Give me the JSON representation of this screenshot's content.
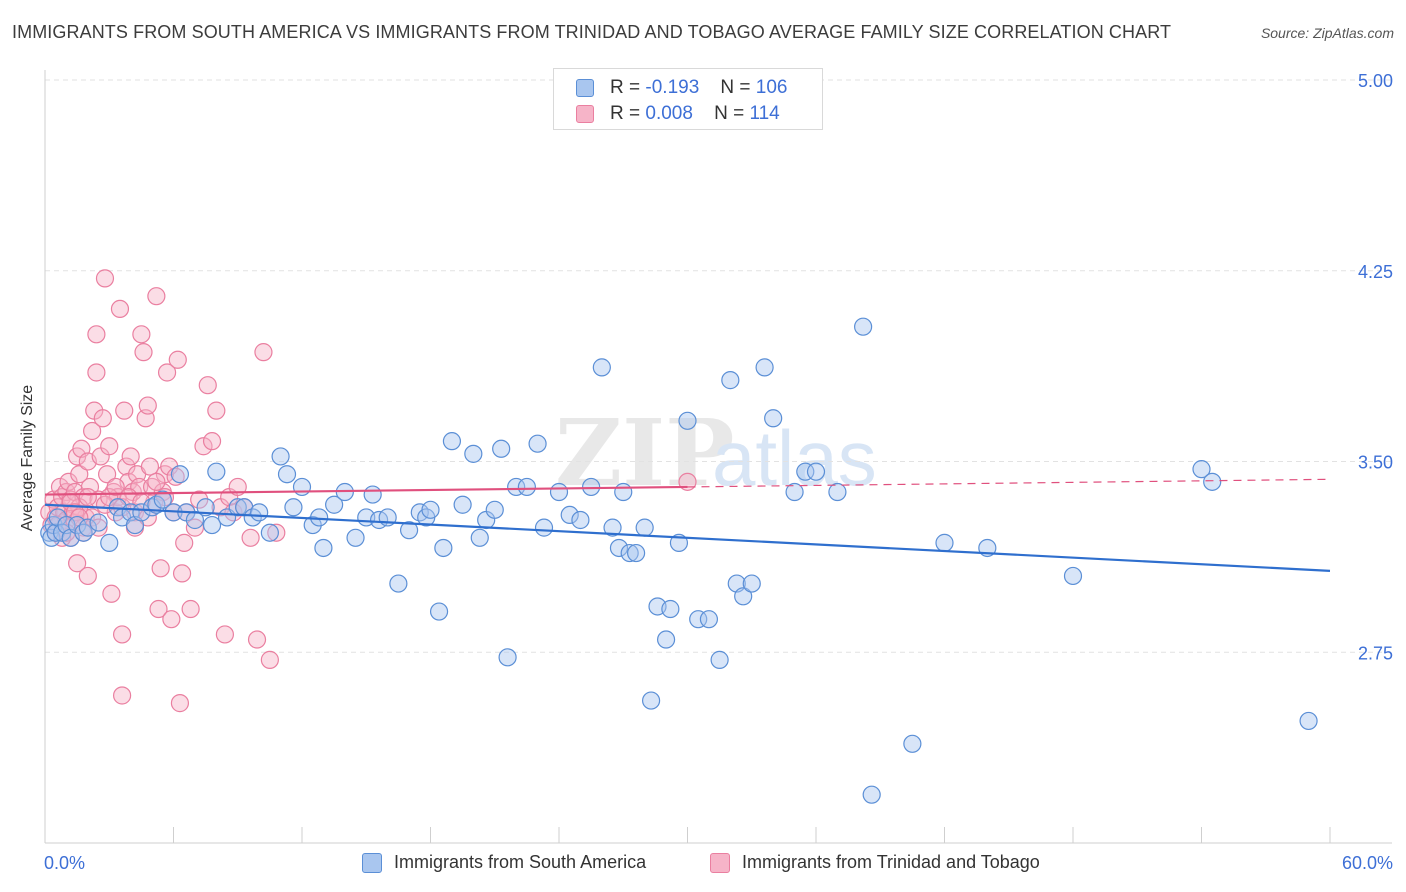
{
  "title": "IMMIGRANTS FROM SOUTH AMERICA VS IMMIGRANTS FROM TRINIDAD AND TOBAGO AVERAGE FAMILY SIZE CORRELATION CHART",
  "source": "Source: ZipAtlas.com",
  "watermark": {
    "zip": "ZIP",
    "atlas": "atlas"
  },
  "stats": {
    "blue": {
      "r_label": "R =",
      "r_value": "-0.193",
      "n_label": "N =",
      "n_value": "106"
    },
    "pink": {
      "r_label": "R =",
      "r_value": "0.008",
      "n_label": "N =",
      "n_value": "114"
    }
  },
  "legend": {
    "blue": "Immigrants from South America",
    "pink": "Immigrants from Trinidad and Tobago"
  },
  "colors": {
    "blue_fill": "#a9c6ef",
    "blue_stroke": "#5b8fd6",
    "blue_line": "#2f6fce",
    "pink_fill": "#f6b4c8",
    "pink_stroke": "#ea7fa0",
    "pink_line": "#e0507e",
    "tick_label": "#3d6fd6",
    "grid": "#e2e2e2"
  },
  "chart_data": {
    "type": "scatter",
    "title": "IMMIGRANTS FROM SOUTH AMERICA VS IMMIGRANTS FROM TRINIDAD AND TOBAGO AVERAGE FAMILY SIZE CORRELATION CHART",
    "xlabel": "",
    "ylabel": "Average Family Size",
    "xlim": [
      0,
      60
    ],
    "ylim": [
      2.0,
      5.0
    ],
    "x_tick_labels": [
      "0.0%",
      "60.0%"
    ],
    "y_ticks": [
      2.75,
      3.5,
      4.25,
      5.0
    ],
    "y_tick_labels": [
      "2.75",
      "3.50",
      "4.25",
      "5.00"
    ],
    "grid": true,
    "series": [
      {
        "name": "Immigrants from South America",
        "r": -0.193,
        "n": 106,
        "trend": {
          "x": [
            0,
            60
          ],
          "y": [
            3.33,
            3.07
          ]
        },
        "points": [
          [
            0.2,
            3.22
          ],
          [
            0.3,
            3.2
          ],
          [
            0.4,
            3.25
          ],
          [
            0.5,
            3.22
          ],
          [
            0.6,
            3.28
          ],
          [
            0.8,
            3.22
          ],
          [
            1.0,
            3.25
          ],
          [
            1.2,
            3.2
          ],
          [
            1.5,
            3.25
          ],
          [
            1.8,
            3.22
          ],
          [
            2.0,
            3.24
          ],
          [
            2.5,
            3.26
          ],
          [
            3.0,
            3.18
          ],
          [
            3.4,
            3.32
          ],
          [
            3.6,
            3.28
          ],
          [
            4.0,
            3.3
          ],
          [
            4.2,
            3.25
          ],
          [
            4.5,
            3.3
          ],
          [
            5.0,
            3.32
          ],
          [
            5.2,
            3.33
          ],
          [
            5.5,
            3.35
          ],
          [
            6.0,
            3.3
          ],
          [
            6.3,
            3.45
          ],
          [
            6.6,
            3.3
          ],
          [
            7.0,
            3.27
          ],
          [
            7.5,
            3.32
          ],
          [
            7.8,
            3.25
          ],
          [
            8.0,
            3.46
          ],
          [
            8.5,
            3.28
          ],
          [
            9.0,
            3.32
          ],
          [
            9.3,
            3.32
          ],
          [
            9.7,
            3.28
          ],
          [
            10.0,
            3.3
          ],
          [
            10.5,
            3.22
          ],
          [
            11.0,
            3.52
          ],
          [
            11.3,
            3.45
          ],
          [
            11.6,
            3.32
          ],
          [
            12.0,
            3.4
          ],
          [
            12.5,
            3.25
          ],
          [
            12.8,
            3.28
          ],
          [
            13.0,
            3.16
          ],
          [
            13.5,
            3.33
          ],
          [
            14.0,
            3.38
          ],
          [
            14.5,
            3.2
          ],
          [
            15.0,
            3.28
          ],
          [
            15.3,
            3.37
          ],
          [
            15.6,
            3.27
          ],
          [
            16.0,
            3.28
          ],
          [
            16.5,
            3.02
          ],
          [
            17.0,
            3.23
          ],
          [
            17.5,
            3.3
          ],
          [
            17.8,
            3.28
          ],
          [
            18.0,
            3.31
          ],
          [
            18.4,
            2.91
          ],
          [
            18.6,
            3.16
          ],
          [
            19.0,
            3.58
          ],
          [
            19.5,
            3.33
          ],
          [
            20.0,
            3.53
          ],
          [
            20.3,
            3.2
          ],
          [
            20.6,
            3.27
          ],
          [
            21.0,
            3.31
          ],
          [
            21.3,
            3.55
          ],
          [
            21.6,
            2.73
          ],
          [
            22.0,
            3.4
          ],
          [
            22.5,
            3.4
          ],
          [
            23.0,
            3.57
          ],
          [
            23.3,
            3.24
          ],
          [
            24.0,
            3.38
          ],
          [
            24.5,
            3.29
          ],
          [
            25.0,
            3.27
          ],
          [
            25.5,
            3.4
          ],
          [
            26.0,
            3.87
          ],
          [
            26.5,
            3.24
          ],
          [
            26.8,
            3.16
          ],
          [
            27.0,
            3.38
          ],
          [
            27.3,
            3.14
          ],
          [
            27.6,
            3.14
          ],
          [
            28.0,
            3.24
          ],
          [
            28.3,
            2.56
          ],
          [
            28.6,
            2.93
          ],
          [
            29.0,
            2.8
          ],
          [
            29.2,
            2.92
          ],
          [
            29.6,
            3.18
          ],
          [
            30.0,
            3.66
          ],
          [
            30.5,
            2.88
          ],
          [
            31.0,
            2.88
          ],
          [
            31.5,
            2.72
          ],
          [
            32.0,
            3.82
          ],
          [
            32.3,
            3.02
          ],
          [
            32.6,
            2.97
          ],
          [
            33.0,
            3.02
          ],
          [
            33.6,
            3.87
          ],
          [
            34.0,
            3.67
          ],
          [
            35.0,
            3.38
          ],
          [
            35.5,
            3.46
          ],
          [
            36.0,
            3.46
          ],
          [
            37.0,
            3.38
          ],
          [
            38.2,
            4.03
          ],
          [
            38.6,
            2.19
          ],
          [
            40.5,
            2.39
          ],
          [
            42.0,
            3.18
          ],
          [
            44.0,
            3.16
          ],
          [
            48.0,
            3.05
          ],
          [
            54.0,
            3.47
          ],
          [
            54.5,
            3.42
          ],
          [
            59.0,
            2.48
          ]
        ]
      },
      {
        "name": "Immigrants from Trinidad and Tobago",
        "r": 0.008,
        "n": 114,
        "trend": {
          "x": [
            0,
            30
          ],
          "y": [
            3.37,
            3.4
          ]
        },
        "trend_dashed": {
          "x": [
            30,
            60
          ],
          "y": [
            3.4,
            3.43
          ]
        },
        "points": [
          [
            0.2,
            3.3
          ],
          [
            0.3,
            3.25
          ],
          [
            0.4,
            3.35
          ],
          [
            0.5,
            3.28
          ],
          [
            0.5,
            3.22
          ],
          [
            0.6,
            3.32
          ],
          [
            0.7,
            3.4
          ],
          [
            0.8,
            3.36
          ],
          [
            0.9,
            3.3
          ],
          [
            1.0,
            3.38
          ],
          [
            1.0,
            3.27
          ],
          [
            1.1,
            3.42
          ],
          [
            1.2,
            3.35
          ],
          [
            1.3,
            3.3
          ],
          [
            1.4,
            3.38
          ],
          [
            1.5,
            3.52
          ],
          [
            1.5,
            3.1
          ],
          [
            1.6,
            3.45
          ],
          [
            1.7,
            3.55
          ],
          [
            1.8,
            3.36
          ],
          [
            1.9,
            3.28
          ],
          [
            2.0,
            3.5
          ],
          [
            2.0,
            3.05
          ],
          [
            2.1,
            3.4
          ],
          [
            2.2,
            3.62
          ],
          [
            2.3,
            3.7
          ],
          [
            2.4,
            3.85
          ],
          [
            2.4,
            4.0
          ],
          [
            2.5,
            3.35
          ],
          [
            2.6,
            3.52
          ],
          [
            2.7,
            3.67
          ],
          [
            2.8,
            4.22
          ],
          [
            2.9,
            3.45
          ],
          [
            3.0,
            3.56
          ],
          [
            3.1,
            2.98
          ],
          [
            3.2,
            3.38
          ],
          [
            3.3,
            3.3
          ],
          [
            3.4,
            3.36
          ],
          [
            3.5,
            4.1
          ],
          [
            3.6,
            2.82
          ],
          [
            3.6,
            2.58
          ],
          [
            3.7,
            3.7
          ],
          [
            3.8,
            3.48
          ],
          [
            3.9,
            3.42
          ],
          [
            4.0,
            3.52
          ],
          [
            4.1,
            3.38
          ],
          [
            4.2,
            3.3
          ],
          [
            4.3,
            3.45
          ],
          [
            4.4,
            3.4
          ],
          [
            4.5,
            4.0
          ],
          [
            4.6,
            3.93
          ],
          [
            4.7,
            3.67
          ],
          [
            4.8,
            3.72
          ],
          [
            4.9,
            3.48
          ],
          [
            5.0,
            3.4
          ],
          [
            5.1,
            3.34
          ],
          [
            5.2,
            4.15
          ],
          [
            5.3,
            2.92
          ],
          [
            5.4,
            3.08
          ],
          [
            5.5,
            3.38
          ],
          [
            5.6,
            3.45
          ],
          [
            5.7,
            3.85
          ],
          [
            5.8,
            3.48
          ],
          [
            5.9,
            2.88
          ],
          [
            6.0,
            3.3
          ],
          [
            6.1,
            3.44
          ],
          [
            6.2,
            3.9
          ],
          [
            6.3,
            2.55
          ],
          [
            6.4,
            3.06
          ],
          [
            6.5,
            3.18
          ],
          [
            6.6,
            3.3
          ],
          [
            6.8,
            2.92
          ],
          [
            7.0,
            3.24
          ],
          [
            7.2,
            3.35
          ],
          [
            7.4,
            3.56
          ],
          [
            7.6,
            3.8
          ],
          [
            7.8,
            3.58
          ],
          [
            8.0,
            3.7
          ],
          [
            8.2,
            3.32
          ],
          [
            8.4,
            2.82
          ],
          [
            8.6,
            3.36
          ],
          [
            8.8,
            3.3
          ],
          [
            9.0,
            3.4
          ],
          [
            9.3,
            3.32
          ],
          [
            9.6,
            3.2
          ],
          [
            9.9,
            2.8
          ],
          [
            10.2,
            3.93
          ],
          [
            10.5,
            2.72
          ],
          [
            10.8,
            3.22
          ],
          [
            1.2,
            3.2
          ],
          [
            1.4,
            3.26
          ],
          [
            1.6,
            3.32
          ],
          [
            1.8,
            3.24
          ],
          [
            2.0,
            3.36
          ],
          [
            2.2,
            3.28
          ],
          [
            2.5,
            3.24
          ],
          [
            2.8,
            3.33
          ],
          [
            3.0,
            3.36
          ],
          [
            3.3,
            3.4
          ],
          [
            3.6,
            3.32
          ],
          [
            3.9,
            3.36
          ],
          [
            4.2,
            3.24
          ],
          [
            4.5,
            3.34
          ],
          [
            4.8,
            3.28
          ],
          [
            5.2,
            3.42
          ],
          [
            5.6,
            3.36
          ],
          [
            0.6,
            3.25
          ],
          [
            0.8,
            3.2
          ],
          [
            1.0,
            3.22
          ],
          [
            1.2,
            3.34
          ],
          [
            1.4,
            3.3
          ],
          [
            1.6,
            3.28
          ],
          [
            1.8,
            3.22
          ],
          [
            30.0,
            3.42
          ]
        ]
      }
    ]
  }
}
